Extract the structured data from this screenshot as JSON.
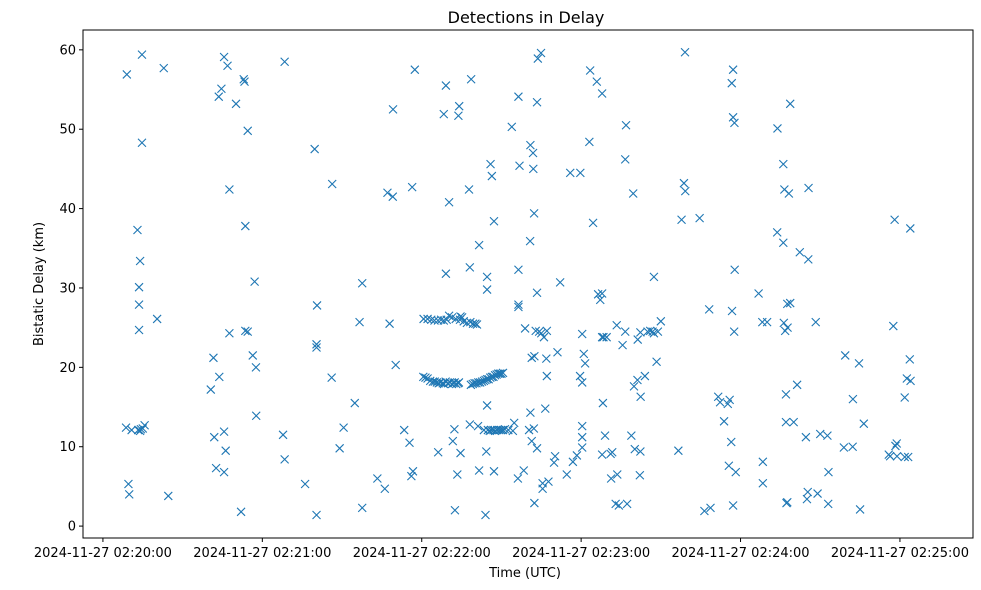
{
  "chart_data": {
    "type": "scatter",
    "title": "Detections in Delay",
    "xlabel": "Time (UTC)",
    "ylabel": "Bistatic Delay (km)",
    "marker": "x",
    "color": "#1f77b4",
    "grid": false,
    "legend": false,
    "x_unit": "seconds",
    "x_epoch_label": "2024-11-27 02:20:00",
    "xlim": [
      -7.5,
      327.5
    ],
    "ylim": [
      -1.5,
      62.5
    ],
    "x_ticks": [
      {
        "value": 0,
        "label": "2024-11-27 02:20:00"
      },
      {
        "value": 60,
        "label": "2024-11-27 02:21:00"
      },
      {
        "value": 120,
        "label": "2024-11-27 02:22:00"
      },
      {
        "value": 180,
        "label": "2024-11-27 02:23:00"
      },
      {
        "value": 240,
        "label": "2024-11-27 02:24:00"
      },
      {
        "value": 300,
        "label": "2024-11-27 02:25:00"
      }
    ],
    "y_ticks": [
      {
        "value": 0,
        "label": "0"
      },
      {
        "value": 10,
        "label": "10"
      },
      {
        "value": 20,
        "label": "20"
      },
      {
        "value": 30,
        "label": "30"
      },
      {
        "value": 40,
        "label": "40"
      },
      {
        "value": 50,
        "label": "50"
      },
      {
        "value": 60,
        "label": "60"
      }
    ],
    "points": [
      [
        14.7,
        59.4
      ],
      [
        22.9,
        57.7
      ],
      [
        14.7,
        48.3
      ],
      [
        13.0,
        37.3
      ],
      [
        14.0,
        33.4
      ],
      [
        13.6,
        30.1
      ],
      [
        13.6,
        27.9
      ],
      [
        13.6,
        24.7
      ],
      [
        10.8,
        12.1
      ],
      [
        13.3,
        12.1
      ],
      [
        14.0,
        12.0
      ],
      [
        14.3,
        12.2
      ],
      [
        15.0,
        12.3
      ],
      [
        15.7,
        12.7
      ],
      [
        8.7,
        12.4
      ],
      [
        9.6,
        5.3
      ],
      [
        9.9,
        4.0
      ],
      [
        9.0,
        56.9
      ],
      [
        20.4,
        26.1
      ],
      [
        24.6,
        3.8
      ],
      [
        45.6,
        59.1
      ],
      [
        46.9,
        58.0
      ],
      [
        44.6,
        55.1
      ],
      [
        43.6,
        54.1
      ],
      [
        53.0,
        56.3
      ],
      [
        53.3,
        56.0
      ],
      [
        50.1,
        53.2
      ],
      [
        54.5,
        49.8
      ],
      [
        47.6,
        42.4
      ],
      [
        53.6,
        37.8
      ],
      [
        53.6,
        24.6
      ],
      [
        54.5,
        24.5
      ],
      [
        47.6,
        24.3
      ],
      [
        41.6,
        21.2
      ],
      [
        40.6,
        17.2
      ],
      [
        43.8,
        18.8
      ],
      [
        41.9,
        11.2
      ],
      [
        45.6,
        11.9
      ],
      [
        46.2,
        9.5
      ],
      [
        42.6,
        7.3
      ],
      [
        45.6,
        6.8
      ],
      [
        52.0,
        1.8
      ],
      [
        57.1,
        30.8
      ],
      [
        56.4,
        21.5
      ],
      [
        57.6,
        20.0
      ],
      [
        57.7,
        13.9
      ],
      [
        67.8,
        11.5
      ],
      [
        68.4,
        8.4
      ],
      [
        68.4,
        58.5
      ],
      [
        76.1,
        5.3
      ],
      [
        79.7,
        47.5
      ],
      [
        80.6,
        27.8
      ],
      [
        80.4,
        22.9
      ],
      [
        80.4,
        22.5
      ],
      [
        80.4,
        1.4
      ],
      [
        86.3,
        43.1
      ],
      [
        86.1,
        18.7
      ],
      [
        89.1,
        9.8
      ],
      [
        90.6,
        12.4
      ],
      [
        94.8,
        15.5
      ],
      [
        96.6,
        25.7
      ],
      [
        97.6,
        30.6
      ],
      [
        97.6,
        2.3
      ],
      [
        103.3,
        6.0
      ],
      [
        106.1,
        4.7
      ],
      [
        107.9,
        25.5
      ],
      [
        107.1,
        42.0
      ],
      [
        109.1,
        41.5
      ],
      [
        109.2,
        52.5
      ],
      [
        110.2,
        20.3
      ],
      [
        113.4,
        12.1
      ],
      [
        115.4,
        10.5
      ],
      [
        116.1,
        6.3
      ],
      [
        116.7,
        6.9
      ],
      [
        116.4,
        42.7
      ],
      [
        117.4,
        57.5
      ],
      [
        126.2,
        9.3
      ],
      [
        128.3,
        51.9
      ],
      [
        129.1,
        55.5
      ],
      [
        129.1,
        31.8
      ],
      [
        130.3,
        40.8
      ],
      [
        131.7,
        10.7
      ],
      [
        132.3,
        12.2
      ],
      [
        132.5,
        2.0
      ],
      [
        133.8,
        51.7
      ],
      [
        134.1,
        52.9
      ],
      [
        133.4,
        6.5
      ],
      [
        134.6,
        9.2
      ],
      [
        138.6,
        56.3
      ],
      [
        137.8,
        42.4
      ],
      [
        138.1,
        32.6
      ],
      [
        138.1,
        12.8
      ],
      [
        141.6,
        35.4
      ],
      [
        141.2,
        12.6
      ],
      [
        141.6,
        7.0
      ],
      [
        144.0,
        1.4
      ],
      [
        144.6,
        15.2
      ],
      [
        144.6,
        29.8
      ],
      [
        144.6,
        31.4
      ],
      [
        145.9,
        45.6
      ],
      [
        146.4,
        44.1
      ],
      [
        147.2,
        38.4
      ],
      [
        143.4,
        12.1
      ],
      [
        144.9,
        12.1
      ],
      [
        145.6,
        12.0
      ],
      [
        146.2,
        12.1
      ],
      [
        147.0,
        12.1
      ],
      [
        147.6,
        12.0
      ],
      [
        148.4,
        12.1
      ],
      [
        149.2,
        12.1
      ],
      [
        149.9,
        12.1
      ],
      [
        150.6,
        12.1
      ],
      [
        151.3,
        12.2
      ],
      [
        144.3,
        9.4
      ],
      [
        147.2,
        6.9
      ],
      [
        152.6,
        12.1
      ],
      [
        154.3,
        12.0
      ],
      [
        154.8,
        13.0
      ],
      [
        156.2,
        6.0
      ],
      [
        156.4,
        54.1
      ],
      [
        153.9,
        50.3
      ],
      [
        156.8,
        45.4
      ],
      [
        156.4,
        32.3
      ],
      [
        156.4,
        27.9
      ],
      [
        156.4,
        27.6
      ],
      [
        158.9,
        24.9
      ],
      [
        158.4,
        7.0
      ],
      [
        160.9,
        14.3
      ],
      [
        160.4,
        12.1
      ],
      [
        161.4,
        10.7
      ],
      [
        162.2,
        12.3
      ],
      [
        160.9,
        48.0
      ],
      [
        161.9,
        47.0
      ],
      [
        162.0,
        45.0
      ],
      [
        162.3,
        39.4
      ],
      [
        160.8,
        35.9
      ],
      [
        161.4,
        21.2
      ],
      [
        162.4,
        21.4
      ],
      [
        162.9,
        24.6
      ],
      [
        164.2,
        24.5
      ],
      [
        163.4,
        29.4
      ],
      [
        163.4,
        53.4
      ],
      [
        163.7,
        58.9
      ],
      [
        164.9,
        59.6
      ],
      [
        165.0,
        24.3
      ],
      [
        166.0,
        23.8
      ],
      [
        166.9,
        21.1
      ],
      [
        167.1,
        18.9
      ],
      [
        167.1,
        24.6
      ],
      [
        166.5,
        14.8
      ],
      [
        165.5,
        5.4
      ],
      [
        165.5,
        4.7
      ],
      [
        163.4,
        9.8
      ],
      [
        162.4,
        2.9
      ],
      [
        167.7,
        5.6
      ],
      [
        169.8,
        8.0
      ],
      [
        170.2,
        8.8
      ],
      [
        171.1,
        21.9
      ],
      [
        172.1,
        30.7
      ],
      [
        174.6,
        6.5
      ],
      [
        175.9,
        44.5
      ],
      [
        176.9,
        8.1
      ],
      [
        178.4,
        8.9
      ],
      [
        180.4,
        9.9
      ],
      [
        180.4,
        11.2
      ],
      [
        180.4,
        12.6
      ],
      [
        179.6,
        18.9
      ],
      [
        180.4,
        18.1
      ],
      [
        181.0,
        21.7
      ],
      [
        181.5,
        20.5
      ],
      [
        180.4,
        24.2
      ],
      [
        179.7,
        44.5
      ],
      [
        183.1,
        48.4
      ],
      [
        183.4,
        57.4
      ],
      [
        184.5,
        38.2
      ],
      [
        185.9,
        56.0
      ],
      [
        187.9,
        54.5
      ],
      [
        186.4,
        29.2
      ],
      [
        187.2,
        28.5
      ],
      [
        187.9,
        29.3
      ],
      [
        187.9,
        23.8
      ],
      [
        188.4,
        23.8
      ],
      [
        189.6,
        23.8
      ],
      [
        188.2,
        15.5
      ],
      [
        189.0,
        11.4
      ],
      [
        187.9,
        9.0
      ],
      [
        191.1,
        9.1
      ],
      [
        191.7,
        9.3
      ],
      [
        193.6,
        6.5
      ],
      [
        193.4,
        25.3
      ],
      [
        196.6,
        24.5
      ],
      [
        196.6,
        46.2
      ],
      [
        196.9,
        50.5
      ],
      [
        191.3,
        6.0
      ],
      [
        193.0,
        2.8
      ],
      [
        194.2,
        2.6
      ],
      [
        197.3,
        2.8
      ],
      [
        195.6,
        22.8
      ],
      [
        198.9,
        11.4
      ],
      [
        199.6,
        41.9
      ],
      [
        199.9,
        17.6
      ],
      [
        201.2,
        18.4
      ],
      [
        201.3,
        23.5
      ],
      [
        202.3,
        24.4
      ],
      [
        202.4,
        16.3
      ],
      [
        200.2,
        9.7
      ],
      [
        202.3,
        9.4
      ],
      [
        204.0,
        18.9
      ],
      [
        205.0,
        24.5
      ],
      [
        206.0,
        24.6
      ],
      [
        206.9,
        24.5
      ],
      [
        207.4,
        31.4
      ],
      [
        207.4,
        24.3
      ],
      [
        208.4,
        20.7
      ],
      [
        208.9,
        24.5
      ],
      [
        210.0,
        25.8
      ],
      [
        202.1,
        6.4
      ],
      [
        217.8,
        38.6
      ],
      [
        218.7,
        43.2
      ],
      [
        219.2,
        42.2
      ],
      [
        219.1,
        59.7
      ],
      [
        216.6,
        9.5
      ],
      [
        224.6,
        38.8
      ],
      [
        228.2,
        27.3
      ],
      [
        228.7,
        2.3
      ],
      [
        226.4,
        1.9
      ],
      [
        231.6,
        16.3
      ],
      [
        232.3,
        15.6
      ],
      [
        233.8,
        13.2
      ],
      [
        236.5,
        10.6
      ],
      [
        235.2,
        15.4
      ],
      [
        235.6,
        7.6
      ],
      [
        236.8,
        27.1
      ],
      [
        237.6,
        24.5
      ],
      [
        237.8,
        32.3
      ],
      [
        237.7,
        50.8
      ],
      [
        237.2,
        51.5
      ],
      [
        236.7,
        55.8
      ],
      [
        237.2,
        57.5
      ],
      [
        235.9,
        15.9
      ],
      [
        238.2,
        6.8
      ],
      [
        237.2,
        2.6
      ],
      [
        246.8,
        29.3
      ],
      [
        248.2,
        25.7
      ],
      [
        248.4,
        8.1
      ],
      [
        248.4,
        5.4
      ],
      [
        250.0,
        25.7
      ],
      [
        253.8,
        37.0
      ],
      [
        253.9,
        50.1
      ],
      [
        257.3,
        2.9
      ],
      [
        257.6,
        3.0
      ],
      [
        257.1,
        13.1
      ],
      [
        257.1,
        16.6
      ],
      [
        256.8,
        24.6
      ],
      [
        256.3,
        25.6
      ],
      [
        257.7,
        25.0
      ],
      [
        257.6,
        28.0
      ],
      [
        258.7,
        28.1
      ],
      [
        260.0,
        13.1
      ],
      [
        258.2,
        41.9
      ],
      [
        256.1,
        35.7
      ],
      [
        256.1,
        45.6
      ],
      [
        256.5,
        42.4
      ],
      [
        258.7,
        53.2
      ],
      [
        261.3,
        17.8
      ],
      [
        262.3,
        34.5
      ],
      [
        265.5,
        33.6
      ],
      [
        265.6,
        42.6
      ],
      [
        264.6,
        11.2
      ],
      [
        265.3,
        4.3
      ],
      [
        265.0,
        3.4
      ],
      [
        269.0,
        4.1
      ],
      [
        268.3,
        25.7
      ],
      [
        270.0,
        11.6
      ],
      [
        272.7,
        11.4
      ],
      [
        273.1,
        6.8
      ],
      [
        273.0,
        2.8
      ],
      [
        278.9,
        9.9
      ],
      [
        279.4,
        21.5
      ],
      [
        282.2,
        10.0
      ],
      [
        282.3,
        16.0
      ],
      [
        284.6,
        20.5
      ],
      [
        285.0,
        2.1
      ],
      [
        286.4,
        12.9
      ],
      [
        295.8,
        9.0
      ],
      [
        296.3,
        8.8
      ],
      [
        297.5,
        25.2
      ],
      [
        298.0,
        38.6
      ],
      [
        298.3,
        10.1
      ],
      [
        298.8,
        10.4
      ],
      [
        298.9,
        8.8
      ],
      [
        301.8,
        16.2
      ],
      [
        302.6,
        18.6
      ],
      [
        303.7,
        21.0
      ],
      [
        304.0,
        18.3
      ],
      [
        303.9,
        37.5
      ],
      [
        301.8,
        8.7
      ],
      [
        303.1,
        8.7
      ],
      [
        120.7,
        26.1
      ],
      [
        122.2,
        26.1
      ],
      [
        123.6,
        26.0
      ],
      [
        124.8,
        25.9
      ],
      [
        126.1,
        25.9
      ],
      [
        127.3,
        26.0
      ],
      [
        128.3,
        25.9
      ],
      [
        129.4,
        26.0
      ],
      [
        130.3,
        26.5
      ],
      [
        131.4,
        26.3
      ],
      [
        132.8,
        26.1
      ],
      [
        134.4,
        26.0
      ],
      [
        134.6,
        26.4
      ],
      [
        135.2,
        26.3
      ],
      [
        135.8,
        25.8
      ],
      [
        137.0,
        25.6
      ],
      [
        138.3,
        25.7
      ],
      [
        139.3,
        25.5
      ],
      [
        140.2,
        25.5
      ],
      [
        140.8,
        25.4
      ],
      [
        120.6,
        18.8
      ],
      [
        121.4,
        18.7
      ],
      [
        122.2,
        18.6
      ],
      [
        123.2,
        18.3
      ],
      [
        124.2,
        18.2
      ],
      [
        124.9,
        18.2
      ],
      [
        125.7,
        18.1
      ],
      [
        126.4,
        18.0
      ],
      [
        127.0,
        18.1
      ],
      [
        127.9,
        18.0
      ],
      [
        128.4,
        17.9
      ],
      [
        129.0,
        18.2
      ],
      [
        129.9,
        18.0
      ],
      [
        130.6,
        18.1
      ],
      [
        131.4,
        17.9
      ],
      [
        132.0,
        18.0
      ],
      [
        132.4,
        18.1
      ],
      [
        133.0,
        17.9
      ],
      [
        133.7,
        18.0
      ],
      [
        134.0,
        18.1
      ],
      [
        138.5,
        17.8
      ],
      [
        139.2,
        17.9
      ],
      [
        139.9,
        18.0
      ],
      [
        140.6,
        18.0
      ],
      [
        141.3,
        18.1
      ],
      [
        142.0,
        18.1
      ],
      [
        142.7,
        18.2
      ],
      [
        143.4,
        18.3
      ],
      [
        144.0,
        18.4
      ],
      [
        144.6,
        18.5
      ],
      [
        145.2,
        18.5
      ],
      [
        145.8,
        18.7
      ],
      [
        146.4,
        18.8
      ],
      [
        147.0,
        18.8
      ],
      [
        147.6,
        19.0
      ],
      [
        148.2,
        19.1
      ],
      [
        148.8,
        19.2
      ],
      [
        149.4,
        19.2
      ],
      [
        150.0,
        19.2
      ],
      [
        150.6,
        19.3
      ]
    ]
  }
}
